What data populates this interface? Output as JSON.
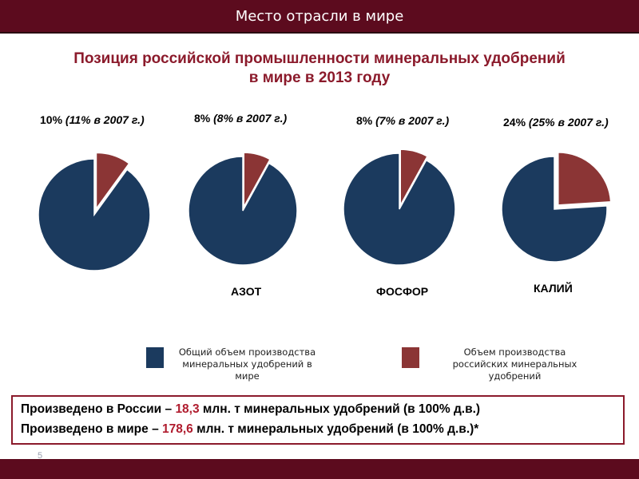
{
  "header": {
    "title": "Место отрасли в мире"
  },
  "slide": {
    "title_line1": "Позиция российской промышленности минеральных удобрений",
    "title_line2": "в мире в 2013 году"
  },
  "colors": {
    "world": "#1b3a5e",
    "russia": "#8b3535",
    "accent": "#5c0b1e",
    "highlight": "#b01c2e"
  },
  "chart_data": [
    {
      "type": "pie",
      "label_main": "10%",
      "label_prev": "(11% в 2007 г.)",
      "category": "",
      "slices": [
        {
          "name": "Общий объем производства минеральных удобрений в мире",
          "value": 90
        },
        {
          "name": "Объем производства российских минеральных удобрений",
          "value": 10
        }
      ]
    },
    {
      "type": "pie",
      "label_main": "8%",
      "label_prev": "(8% в 2007 г.)",
      "category": "АЗОТ",
      "slices": [
        {
          "name": "Общий объем производства минеральных удобрений в мире",
          "value": 92
        },
        {
          "name": "Объем производства российских минеральных удобрений",
          "value": 8
        }
      ]
    },
    {
      "type": "pie",
      "label_main": "8%",
      "label_prev": "(7% в 2007 г.)",
      "category": "ФОСФОР",
      "slices": [
        {
          "name": "Общий объем производства минеральных удобрений в мире",
          "value": 92
        },
        {
          "name": "Объем производства российских минеральных удобрений",
          "value": 8
        }
      ]
    },
    {
      "type": "pie",
      "label_main": "24%",
      "label_prev": "(25% в 2007 г.)",
      "category": "КАЛИЙ",
      "slices": [
        {
          "name": "Общий объем производства минеральных удобрений в мире",
          "value": 76
        },
        {
          "name": "Объем производства российских минеральных удобрений",
          "value": 24
        }
      ]
    }
  ],
  "legend": {
    "world_line1": "Общий объем производства",
    "world_line2": "минеральных удобрений в мире",
    "russia_line1": "Объем производства",
    "russia_line2": "российских минеральных удобрений"
  },
  "summary": {
    "line1_pre": "Произведено в России – ",
    "line1_value": "18,3",
    "line1_post": " млн. т минеральных удобрений (в 100% д.в.)",
    "line2_pre": "Произведено в мире – ",
    "line2_value": "178,6",
    "line2_post": " млн. т минеральных удобрений (в 100% д.в.)*"
  },
  "page_number": "5"
}
